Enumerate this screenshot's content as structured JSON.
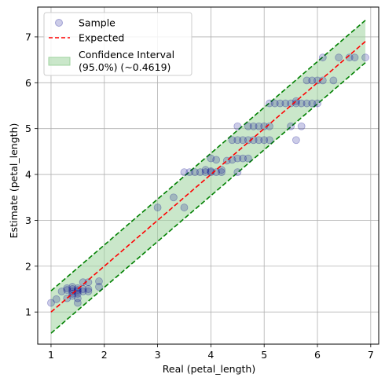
{
  "chart_data": {
    "type": "scatter",
    "xlabel": "Real (petal_length)",
    "ylabel": "Estimate (petal_length)",
    "xlim": [
      0.75,
      7.15
    ],
    "ylim": [
      0.3,
      7.65
    ],
    "xticks": [
      1,
      2,
      3,
      4,
      5,
      6,
      7
    ],
    "yticks": [
      1,
      2,
      3,
      4,
      5,
      6,
      7
    ],
    "grid": true,
    "legend_position": "top-left",
    "colors": {
      "sample": "#00008b",
      "expected": "#ff0000",
      "ci_line": "#008000",
      "ci_fill": "#9fd39f"
    },
    "legend": {
      "sample": "Sample",
      "expected": "Expected",
      "ci_line1": "Confidence Interval",
      "ci_line2": "(95.0%) (~0.4619)"
    },
    "expected_line": {
      "x": [
        1.0,
        6.9
      ],
      "y": [
        1.0,
        6.9
      ]
    },
    "confidence_interval": {
      "half_width": 0.4619,
      "x": [
        1.0,
        6.9
      ]
    },
    "series": [
      {
        "name": "Sample",
        "points": [
          [
            1.0,
            1.2
          ],
          [
            1.1,
            1.28
          ],
          [
            1.2,
            1.45
          ],
          [
            1.3,
            1.52
          ],
          [
            1.3,
            1.3
          ],
          [
            1.3,
            1.48
          ],
          [
            1.4,
            1.45
          ],
          [
            1.4,
            1.5
          ],
          [
            1.4,
            1.4
          ],
          [
            1.4,
            1.55
          ],
          [
            1.4,
            1.35
          ],
          [
            1.5,
            1.48
          ],
          [
            1.5,
            1.45
          ],
          [
            1.5,
            1.52
          ],
          [
            1.5,
            1.4
          ],
          [
            1.5,
            1.2
          ],
          [
            1.5,
            1.3
          ],
          [
            1.6,
            1.5
          ],
          [
            1.6,
            1.45
          ],
          [
            1.6,
            1.65
          ],
          [
            1.7,
            1.5
          ],
          [
            1.7,
            1.45
          ],
          [
            1.7,
            1.65
          ],
          [
            1.9,
            1.55
          ],
          [
            1.9,
            1.67
          ],
          [
            3.0,
            3.28
          ],
          [
            3.3,
            3.5
          ],
          [
            3.5,
            3.28
          ],
          [
            3.5,
            4.05
          ],
          [
            3.6,
            4.05
          ],
          [
            3.7,
            4.05
          ],
          [
            3.8,
            4.05
          ],
          [
            3.9,
            4.05
          ],
          [
            3.9,
            4.1
          ],
          [
            4.0,
            4.05
          ],
          [
            4.0,
            4.35
          ],
          [
            4.0,
            4.07
          ],
          [
            4.1,
            4.05
          ],
          [
            4.1,
            4.32
          ],
          [
            4.2,
            4.05
          ],
          [
            4.2,
            4.1
          ],
          [
            4.3,
            4.3
          ],
          [
            4.4,
            4.32
          ],
          [
            4.4,
            4.75
          ],
          [
            4.5,
            4.75
          ],
          [
            4.5,
            5.05
          ],
          [
            4.5,
            4.05
          ],
          [
            4.5,
            4.35
          ],
          [
            4.6,
            4.75
          ],
          [
            4.6,
            4.35
          ],
          [
            4.7,
            4.75
          ],
          [
            4.7,
            4.35
          ],
          [
            4.7,
            5.05
          ],
          [
            4.8,
            4.75
          ],
          [
            4.8,
            5.05
          ],
          [
            4.9,
            5.05
          ],
          [
            4.9,
            4.75
          ],
          [
            5.0,
            5.05
          ],
          [
            5.0,
            4.75
          ],
          [
            5.1,
            5.05
          ],
          [
            5.1,
            5.55
          ],
          [
            5.1,
            4.75
          ],
          [
            5.2,
            5.55
          ],
          [
            5.3,
            5.55
          ],
          [
            5.4,
            5.55
          ],
          [
            5.5,
            5.55
          ],
          [
            5.5,
            5.05
          ],
          [
            5.6,
            5.55
          ],
          [
            5.6,
            4.75
          ],
          [
            5.6,
            5.6
          ],
          [
            5.7,
            5.55
          ],
          [
            5.7,
            5.05
          ],
          [
            5.8,
            5.55
          ],
          [
            5.8,
            6.05
          ],
          [
            5.9,
            6.05
          ],
          [
            5.9,
            5.55
          ],
          [
            6.0,
            6.05
          ],
          [
            6.0,
            5.55
          ],
          [
            6.1,
            6.05
          ],
          [
            6.1,
            6.55
          ],
          [
            6.3,
            6.05
          ],
          [
            6.4,
            6.55
          ],
          [
            6.6,
            6.55
          ],
          [
            6.7,
            6.55
          ],
          [
            6.9,
            6.55
          ]
        ]
      }
    ]
  }
}
